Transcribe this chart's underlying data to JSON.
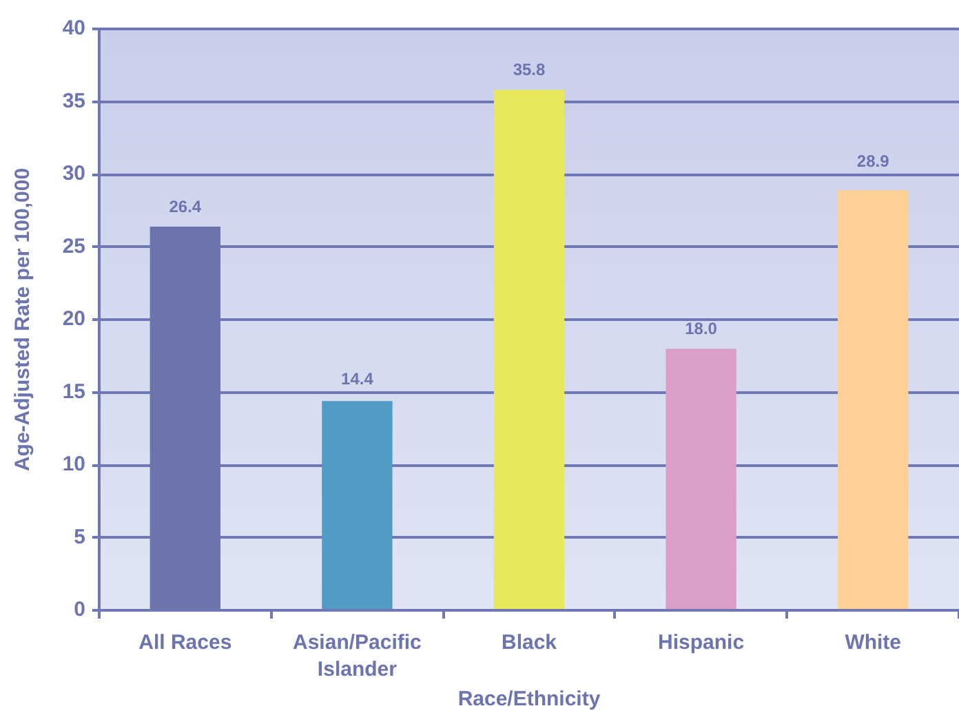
{
  "chart_data": {
    "type": "bar",
    "categories": [
      "All Races",
      "Asian/Pacific Islander",
      "Black",
      "Hispanic",
      "White"
    ],
    "values": [
      26.4,
      14.4,
      35.8,
      18.0,
      28.9
    ],
    "colors": [
      "#6b74ab",
      "#529bc4",
      "#e8e85c",
      "#d99fc8",
      "#fdd095"
    ],
    "value_labels": [
      "26.4",
      "14.4",
      "35.8",
      "18.0",
      "28.9"
    ],
    "xlabel": "Race/Ethnicity",
    "ylabel": "Age-Adjusted Rate per 100,000",
    "ylim": [
      0,
      40
    ],
    "yticks": [
      0,
      5,
      10,
      15,
      20,
      25,
      30,
      35,
      40
    ],
    "grid": "y"
  }
}
